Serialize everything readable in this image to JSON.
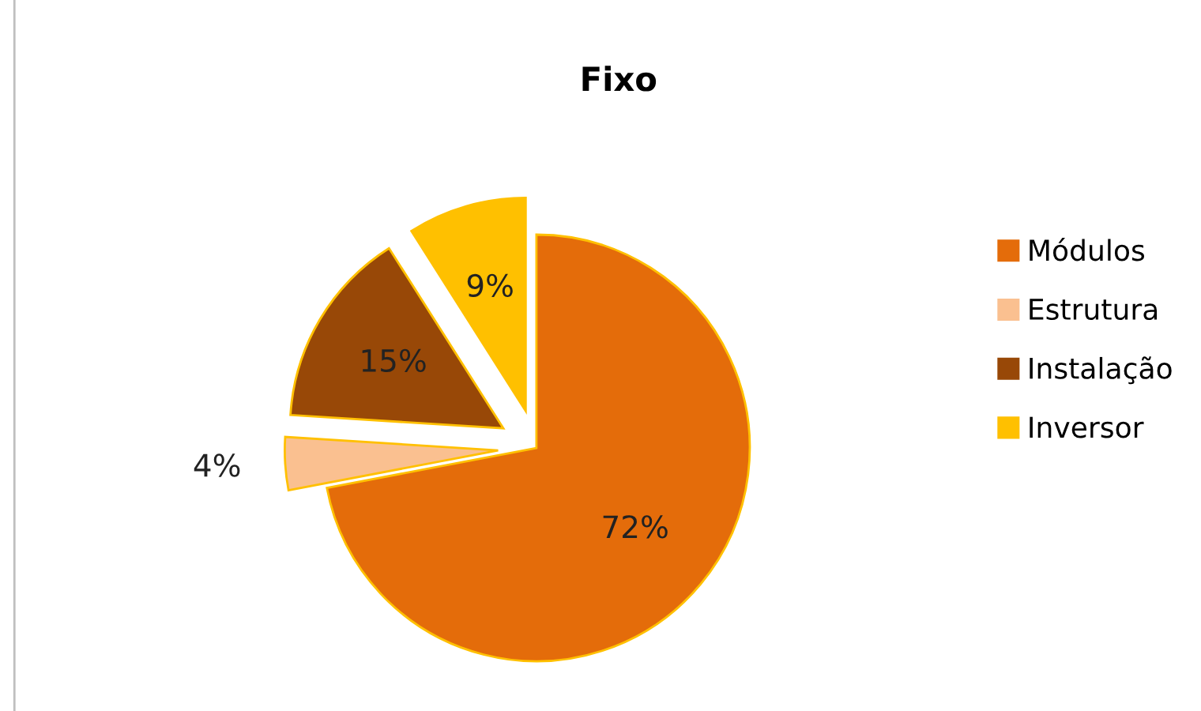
{
  "chart_data": {
    "type": "pie",
    "title": "Fixo",
    "categories": [
      "Módulos",
      "Estrutura",
      "Instalação",
      "Inversor"
    ],
    "values": [
      72,
      4,
      15,
      9
    ],
    "colors": [
      "#e46c0a",
      "#fac090",
      "#984807",
      "#ffc000"
    ],
    "value_labels": [
      "72%",
      "4%",
      "15%",
      "9%"
    ],
    "legend": "right"
  }
}
